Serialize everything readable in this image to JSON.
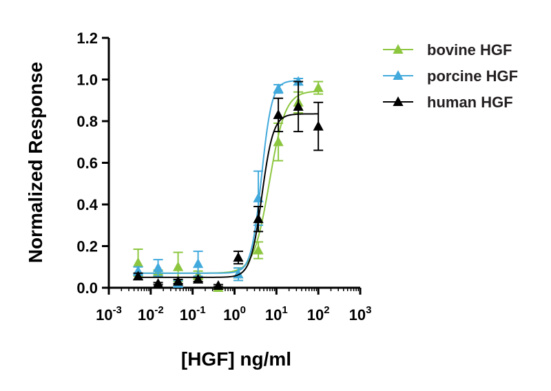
{
  "chart_data": {
    "type": "scatter",
    "xlabel": "[HGF] ng/ml",
    "ylabel": "Normalized Response",
    "x_scale": "log",
    "xlim": [
      0.001,
      1000
    ],
    "ylim": [
      0.0,
      1.2
    ],
    "x_ticks": [
      {
        "value": 0.001,
        "base": "10",
        "exp": "-3"
      },
      {
        "value": 0.01,
        "base": "10",
        "exp": "-2"
      },
      {
        "value": 0.1,
        "base": "10",
        "exp": "-1"
      },
      {
        "value": 1,
        "base": "10",
        "exp": "0"
      },
      {
        "value": 10,
        "base": "10",
        "exp": "1"
      },
      {
        "value": 100,
        "base": "10",
        "exp": "2"
      },
      {
        "value": 1000,
        "base": "10",
        "exp": "3"
      }
    ],
    "y_ticks": [
      "0.0",
      "0.2",
      "0.4",
      "0.6",
      "0.8",
      "1.0",
      "1.2"
    ],
    "legend_position": "top-right",
    "series": [
      {
        "name": "bovine HGF",
        "color": "#8cc63f",
        "points": [
          {
            "x": 0.005,
            "y": 0.12,
            "err": 0.065
          },
          {
            "x": 0.015,
            "y": 0.075,
            "err": 0.01
          },
          {
            "x": 0.045,
            "y": 0.1,
            "err": 0.07
          },
          {
            "x": 0.135,
            "y": 0.06,
            "err": 0.02
          },
          {
            "x": 0.41,
            "y": 0.0,
            "err": 0.005
          },
          {
            "x": 1.23,
            "y": 0.065,
            "err": 0.03
          },
          {
            "x": 3.7,
            "y": 0.18,
            "err": 0.04
          },
          {
            "x": 11.1,
            "y": 0.7,
            "err": 0.09
          },
          {
            "x": 33.3,
            "y": 0.89,
            "err": 0.05
          },
          {
            "x": 100,
            "y": 0.96,
            "err": 0.03
          }
        ],
        "fit": {
          "bottom": 0.07,
          "top": 0.945,
          "ec50": 6.8,
          "hill": 2.3
        }
      },
      {
        "name": "porcine HGF",
        "color": "#41a9dc",
        "points": [
          {
            "x": 0.005,
            "y": 0.08,
            "err": 0.02
          },
          {
            "x": 0.015,
            "y": 0.095,
            "err": 0.04
          },
          {
            "x": 0.045,
            "y": 0.02,
            "err": 0.015
          },
          {
            "x": 0.135,
            "y": 0.115,
            "err": 0.06
          },
          {
            "x": 1.23,
            "y": 0.065,
            "err": 0.03
          },
          {
            "x": 3.7,
            "y": 0.43,
            "err": 0.13
          },
          {
            "x": 11.1,
            "y": 0.955,
            "err": 0.02
          },
          {
            "x": 33.3,
            "y": 0.99,
            "err": 0.015
          }
        ],
        "fit": {
          "bottom": 0.07,
          "top": 0.995,
          "ec50": 4.4,
          "hill": 3.5
        }
      },
      {
        "name": "human HGF",
        "color": "#000000",
        "points": [
          {
            "x": 0.005,
            "y": 0.055,
            "err": 0.015
          },
          {
            "x": 0.015,
            "y": 0.02,
            "err": 0.005
          },
          {
            "x": 0.045,
            "y": 0.03,
            "err": 0.01
          },
          {
            "x": 0.135,
            "y": 0.04,
            "err": 0.01
          },
          {
            "x": 0.41,
            "y": 0.01,
            "err": 0.005
          },
          {
            "x": 1.23,
            "y": 0.145,
            "err": 0.03
          },
          {
            "x": 3.7,
            "y": 0.33,
            "err": 0.06
          },
          {
            "x": 11.1,
            "y": 0.83,
            "err": 0.08
          },
          {
            "x": 33.3,
            "y": 0.87,
            "err": 0.12
          },
          {
            "x": 100,
            "y": 0.775,
            "err": 0.115
          }
        ],
        "fit": {
          "bottom": 0.05,
          "top": 0.835,
          "ec50": 4.5,
          "hill": 3.2
        }
      }
    ]
  }
}
